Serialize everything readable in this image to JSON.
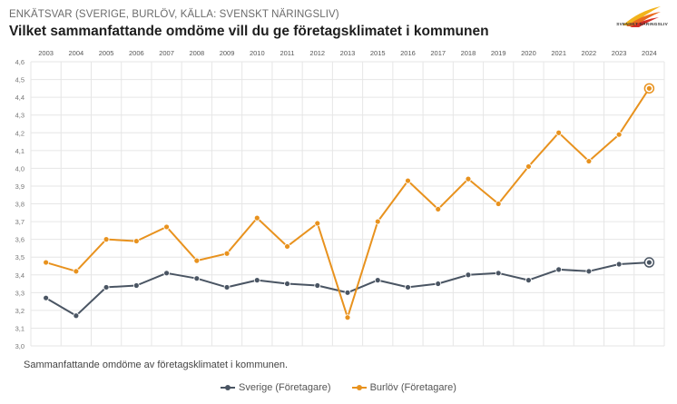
{
  "header": {
    "subtitle": "ENKÄTSVAR (SVERIGE, BURLÖV, KÄLLA: SVENSKT NÄRINGSLIV)",
    "title": "Vilket sammanfattande omdöme vill du ge företagsklimatet i kommunen",
    "logo_text": "SVENSKT NÄRINGSLIV"
  },
  "caption": "Sammanfattande omdöme av företagsklimatet i kommunen.",
  "colors": {
    "sverige": "#4a5563",
    "burlov": "#e8921e",
    "grid": "#e6e6e6"
  },
  "chart_data": {
    "type": "line",
    "title": "Vilket sammanfattande omdöme vill du ge företagsklimatet i kommunen",
    "subtitle": "ENKÄTSVAR (SVERIGE, BURLÖV, KÄLLA: SVENSKT NÄRINGSLIV)",
    "x": [
      "2003",
      "2004",
      "2005",
      "2006",
      "2007",
      "2008",
      "2009",
      "2010",
      "2011",
      "2012",
      "2013",
      "2015",
      "2016",
      "2017",
      "2018",
      "2019",
      "2020",
      "2021",
      "2022",
      "2023",
      "2024"
    ],
    "ylim": [
      3.0,
      4.6
    ],
    "yticks": [
      "3,0",
      "3,1",
      "3,2",
      "3,3",
      "3,4",
      "3,5",
      "3,6",
      "3,7",
      "3,8",
      "3,9",
      "4,0",
      "4,1",
      "4,2",
      "4,3",
      "4,4",
      "4,5",
      "4,6"
    ],
    "x_axis_position": "top",
    "grid": true,
    "legend_position": "bottom",
    "series": [
      {
        "name": "Sverige (Företagare)",
        "values": [
          3.27,
          3.17,
          3.33,
          3.34,
          3.41,
          3.38,
          3.33,
          3.37,
          3.35,
          3.34,
          3.3,
          3.37,
          3.33,
          3.35,
          3.4,
          3.41,
          3.37,
          3.43,
          3.42,
          3.46,
          3.47
        ]
      },
      {
        "name": "Burlöv (Företagare)",
        "values": [
          3.47,
          3.42,
          3.6,
          3.59,
          3.67,
          3.48,
          3.52,
          3.72,
          3.56,
          3.69,
          3.16,
          3.7,
          3.93,
          3.77,
          3.94,
          3.8,
          4.01,
          4.2,
          4.04,
          4.19,
          4.45
        ]
      }
    ]
  }
}
